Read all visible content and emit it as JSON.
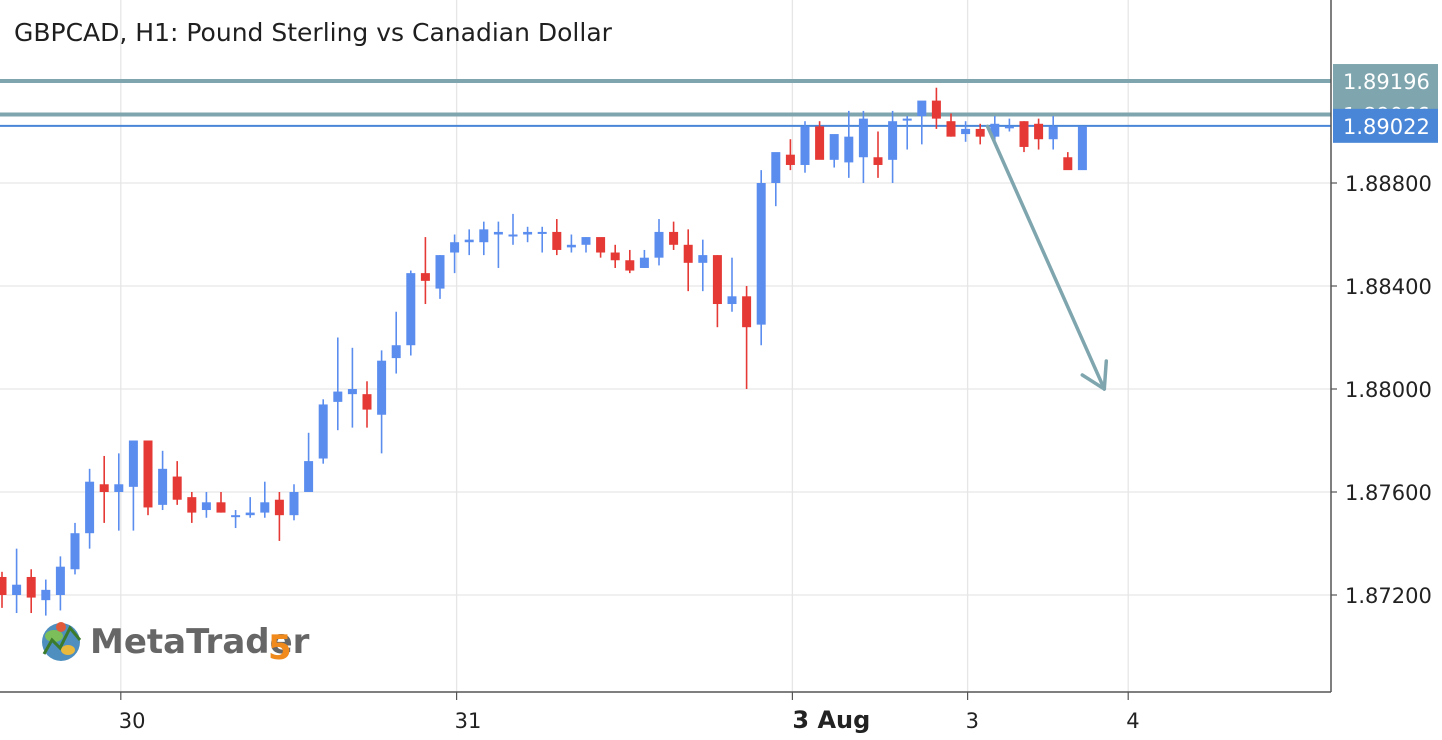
{
  "chart_data": {
    "type": "candlestick",
    "title": "GBPCAD, H1: Pound Sterling vs Canadian Dollar",
    "symbol": "GBPCAD",
    "timeframe": "H1",
    "ylim": [
      1.8685,
      1.8959
    ],
    "y_ticks": [
      "1.88800",
      "1.88400",
      "1.88000",
      "1.87600",
      "1.87200"
    ],
    "x_ticks": [
      {
        "label": "30",
        "bold": false,
        "bar": 8
      },
      {
        "label": "31",
        "bold": false,
        "bar": 31
      },
      {
        "label": "3 Aug",
        "bold": true,
        "bar": 54
      },
      {
        "label": "3",
        "bold": false,
        "bar": 66
      },
      {
        "label": "4",
        "bold": false,
        "bar": 77
      }
    ],
    "grid": true,
    "colors": {
      "bull": "#5b8def",
      "bear": "#e53935",
      "level": "#7fa6ae",
      "blue_level": "#4a86d8",
      "grid": "#e6e6e6",
      "axis": "#555555"
    },
    "candles": [
      [
        1.8727,
        1.8729,
        1.8715,
        1.872
      ],
      [
        1.872,
        1.8738,
        1.8713,
        1.8724
      ],
      [
        1.8727,
        1.873,
        1.8713,
        1.8719
      ],
      [
        1.8718,
        1.8726,
        1.8712,
        1.8722
      ],
      [
        1.872,
        1.8735,
        1.8714,
        1.8731
      ],
      [
        1.873,
        1.8748,
        1.8728,
        1.8744
      ],
      [
        1.8744,
        1.8769,
        1.8738,
        1.8764
      ],
      [
        1.8763,
        1.8774,
        1.8748,
        1.876
      ],
      [
        1.876,
        1.8775,
        1.8745,
        1.8763
      ],
      [
        1.8762,
        1.878,
        1.8745,
        1.878
      ],
      [
        1.878,
        1.878,
        1.8751,
        1.8754
      ],
      [
        1.8755,
        1.8776,
        1.8753,
        1.8769
      ],
      [
        1.8766,
        1.8772,
        1.8755,
        1.8757
      ],
      [
        1.8758,
        1.876,
        1.8748,
        1.8752
      ],
      [
        1.8753,
        1.876,
        1.875,
        1.8756
      ],
      [
        1.8756,
        1.876,
        1.8752,
        1.8752
      ],
      [
        1.8751,
        1.8753,
        1.8746,
        1.8751
      ],
      [
        1.8751,
        1.8758,
        1.875,
        1.8752
      ],
      [
        1.8752,
        1.8764,
        1.875,
        1.8756
      ],
      [
        1.8757,
        1.876,
        1.8741,
        1.8751
      ],
      [
        1.8751,
        1.8763,
        1.8749,
        1.876
      ],
      [
        1.876,
        1.8783,
        1.876,
        1.8772
      ],
      [
        1.8773,
        1.8796,
        1.8771,
        1.8794
      ],
      [
        1.8795,
        1.882,
        1.8784,
        1.8799
      ],
      [
        1.8798,
        1.8816,
        1.8785,
        1.88
      ],
      [
        1.8798,
        1.8803,
        1.8785,
        1.8792
      ],
      [
        1.879,
        1.8815,
        1.8775,
        1.8811
      ],
      [
        1.8812,
        1.883,
        1.8806,
        1.8817
      ],
      [
        1.8817,
        1.8846,
        1.8813,
        1.8845
      ],
      [
        1.8845,
        1.8859,
        1.8833,
        1.8842
      ],
      [
        1.8839,
        1.8852,
        1.8835,
        1.8852
      ],
      [
        1.8853,
        1.886,
        1.8845,
        1.8857
      ],
      [
        1.8857,
        1.8862,
        1.8852,
        1.8858
      ],
      [
        1.8857,
        1.8865,
        1.8852,
        1.8862
      ],
      [
        1.886,
        1.8865,
        1.8847,
        1.8861
      ],
      [
        1.886,
        1.8868,
        1.8856,
        1.886
      ],
      [
        1.886,
        1.8863,
        1.8857,
        1.8861
      ],
      [
        1.8861,
        1.8863,
        1.8853,
        1.8861
      ],
      [
        1.8861,
        1.8866,
        1.8852,
        1.8854
      ],
      [
        1.8855,
        1.886,
        1.8853,
        1.8856
      ],
      [
        1.8856,
        1.8859,
        1.8853,
        1.8859
      ],
      [
        1.8859,
        1.8858,
        1.8851,
        1.8853
      ],
      [
        1.8853,
        1.8856,
        1.8847,
        1.885
      ],
      [
        1.885,
        1.8854,
        1.8845,
        1.8846
      ],
      [
        1.8847,
        1.8854,
        1.8847,
        1.8851
      ],
      [
        1.8851,
        1.8866,
        1.8848,
        1.8861
      ],
      [
        1.8861,
        1.8865,
        1.8854,
        1.8856
      ],
      [
        1.8856,
        1.8862,
        1.8838,
        1.8849
      ],
      [
        1.8849,
        1.8858,
        1.8838,
        1.8852
      ],
      [
        1.8852,
        1.8852,
        1.8824,
        1.8833
      ],
      [
        1.8833,
        1.8851,
        1.883,
        1.8836
      ],
      [
        1.8836,
        1.884,
        1.88,
        1.8824
      ],
      [
        1.8825,
        1.8885,
        1.8817,
        1.888
      ],
      [
        1.888,
        1.8891,
        1.8871,
        1.8892
      ],
      [
        1.8891,
        1.8897,
        1.8885,
        1.8887
      ],
      [
        1.8887,
        1.8904,
        1.8884,
        1.8902
      ],
      [
        1.8902,
        1.8904,
        1.889,
        1.8889
      ],
      [
        1.8889,
        1.8898,
        1.8886,
        1.8899
      ],
      [
        1.8888,
        1.8908,
        1.8882,
        1.8898
      ],
      [
        1.889,
        1.8908,
        1.888,
        1.8905
      ],
      [
        1.889,
        1.89,
        1.8882,
        1.8887
      ],
      [
        1.8889,
        1.8908,
        1.888,
        1.8904
      ],
      [
        1.8905,
        1.8906,
        1.8893,
        1.8905
      ],
      [
        1.8906,
        1.8911,
        1.8895,
        1.8912
      ],
      [
        1.8912,
        1.8917,
        1.8901,
        1.8905
      ],
      [
        1.8904,
        1.8907,
        1.8898,
        1.8898
      ],
      [
        1.8899,
        1.8904,
        1.8896,
        1.8901
      ],
      [
        1.8901,
        1.8903,
        1.8895,
        1.8898
      ],
      [
        1.8898,
        1.8906,
        1.8895,
        1.8903
      ],
      [
        1.8902,
        1.8905,
        1.89,
        1.8902
      ],
      [
        1.8904,
        1.8904,
        1.8892,
        1.8894
      ],
      [
        1.8903,
        1.8905,
        1.8893,
        1.8897
      ],
      [
        1.8897,
        1.8906,
        1.8893,
        1.8902
      ],
      [
        1.889,
        1.8892,
        1.8887,
        1.8885
      ],
      [
        1.8885,
        1.8902,
        1.8887,
        1.8902
      ]
    ],
    "levels": [
      {
        "price": 1.89196,
        "label": "1.89196",
        "color": "#7fa6ae",
        "width": 4
      },
      {
        "price": 1.89066,
        "label": "1.89066",
        "color": "#7fa6ae",
        "width": 4
      },
      {
        "price": 1.89022,
        "label": "1.89022",
        "color": "#4a86d8",
        "width": 2
      }
    ],
    "arrow": {
      "from": {
        "bar": 67.5,
        "price": 1.8902
      },
      "to": {
        "bar": 75.5,
        "price": 1.88
      },
      "color": "#7fa6ae"
    }
  },
  "logo": {
    "text": "MetaTrader",
    "version": "5"
  }
}
